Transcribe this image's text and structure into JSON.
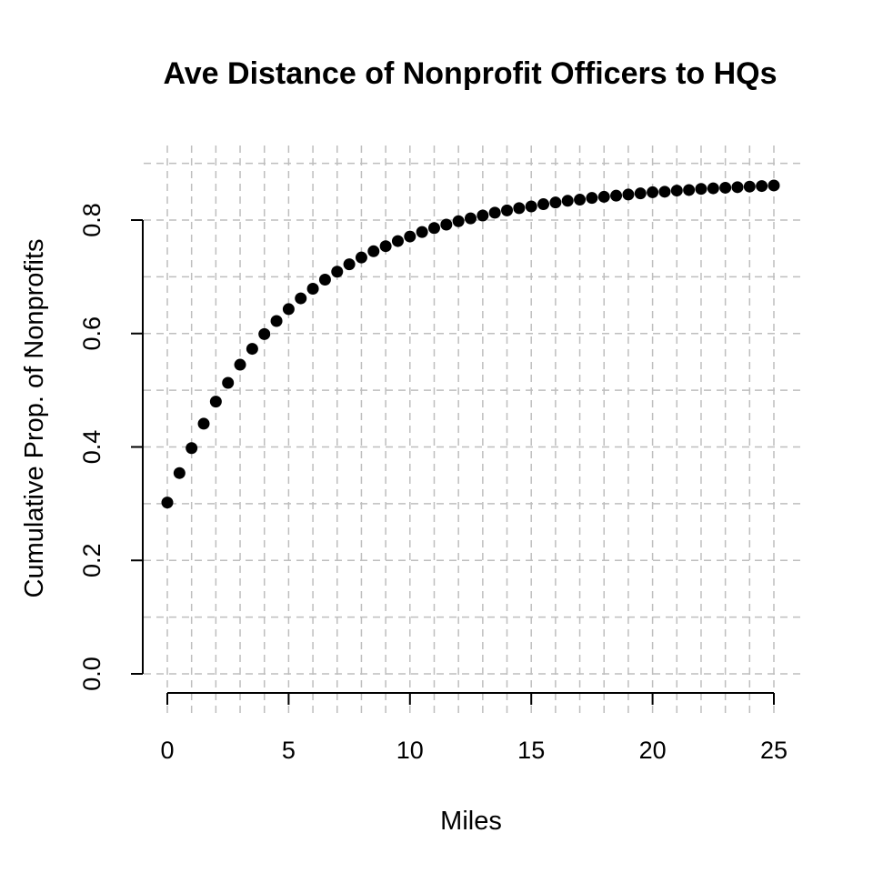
{
  "chart_data": {
    "type": "scatter",
    "title": "Ave Distance of Nonprofit Officers to HQs",
    "xlabel": "Miles",
    "ylabel": "Cumulative Prop. of Nonprofits",
    "xlim": [
      0,
      25
    ],
    "ylim": [
      0,
      0.8
    ],
    "x_ticks": [
      0,
      5,
      10,
      15,
      20,
      25
    ],
    "y_ticks": [
      0.0,
      0.2,
      0.4,
      0.6,
      0.8
    ],
    "x_tick_labels": [
      "0",
      "5",
      "10",
      "15",
      "20",
      "25"
    ],
    "y_tick_labels": [
      "0.0",
      "0.2",
      "0.4",
      "0.6",
      "0.8"
    ],
    "grid": true,
    "series": [
      {
        "x": [
          0,
          0.5,
          1,
          1.5,
          2,
          2.5,
          3,
          3.5,
          4,
          4.5,
          5,
          5.5,
          6,
          6.5,
          7,
          7.5,
          8,
          8.5,
          9,
          9.5,
          10,
          10.5,
          11,
          11.5,
          12,
          12.5,
          13,
          13.5,
          14,
          14.5,
          15,
          15.5,
          16,
          16.5,
          17,
          17.5,
          18,
          18.5,
          19,
          19.5,
          20,
          20.5,
          21,
          21.5,
          22,
          22.5,
          23,
          23.5,
          24,
          24.5,
          25
        ],
        "y": [
          0.302,
          0.354,
          0.398,
          0.441,
          0.48,
          0.513,
          0.545,
          0.573,
          0.599,
          0.622,
          0.643,
          0.662,
          0.679,
          0.695,
          0.709,
          0.722,
          0.734,
          0.745,
          0.754,
          0.763,
          0.771,
          0.779,
          0.786,
          0.792,
          0.798,
          0.803,
          0.808,
          0.813,
          0.817,
          0.821,
          0.824,
          0.828,
          0.831,
          0.834,
          0.836,
          0.839,
          0.841,
          0.843,
          0.845,
          0.847,
          0.849,
          0.85,
          0.852,
          0.853,
          0.855,
          0.856,
          0.857,
          0.858,
          0.859,
          0.86,
          0.861
        ]
      }
    ]
  }
}
